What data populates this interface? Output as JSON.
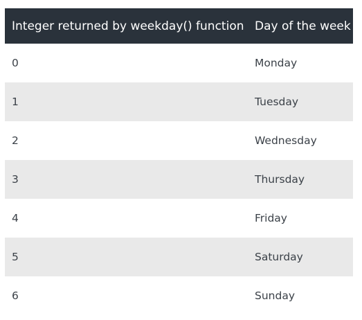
{
  "table": {
    "headers": [
      "Integer returned by weekday() function",
      "Day of the week"
    ],
    "rows": [
      [
        "0",
        "Monday"
      ],
      [
        "1",
        "Tuesday"
      ],
      [
        "2",
        "Wednesday"
      ],
      [
        "3",
        "Thursday"
      ],
      [
        "4",
        "Friday"
      ],
      [
        "5",
        "Saturday"
      ],
      [
        "6",
        "Sunday"
      ]
    ]
  },
  "colors": {
    "header_bg": "#2a323b",
    "header_text": "#ffffff",
    "row_alt_bg": "#e9e9e9",
    "row_bg": "#ffffff",
    "body_text": "#3b4148"
  }
}
